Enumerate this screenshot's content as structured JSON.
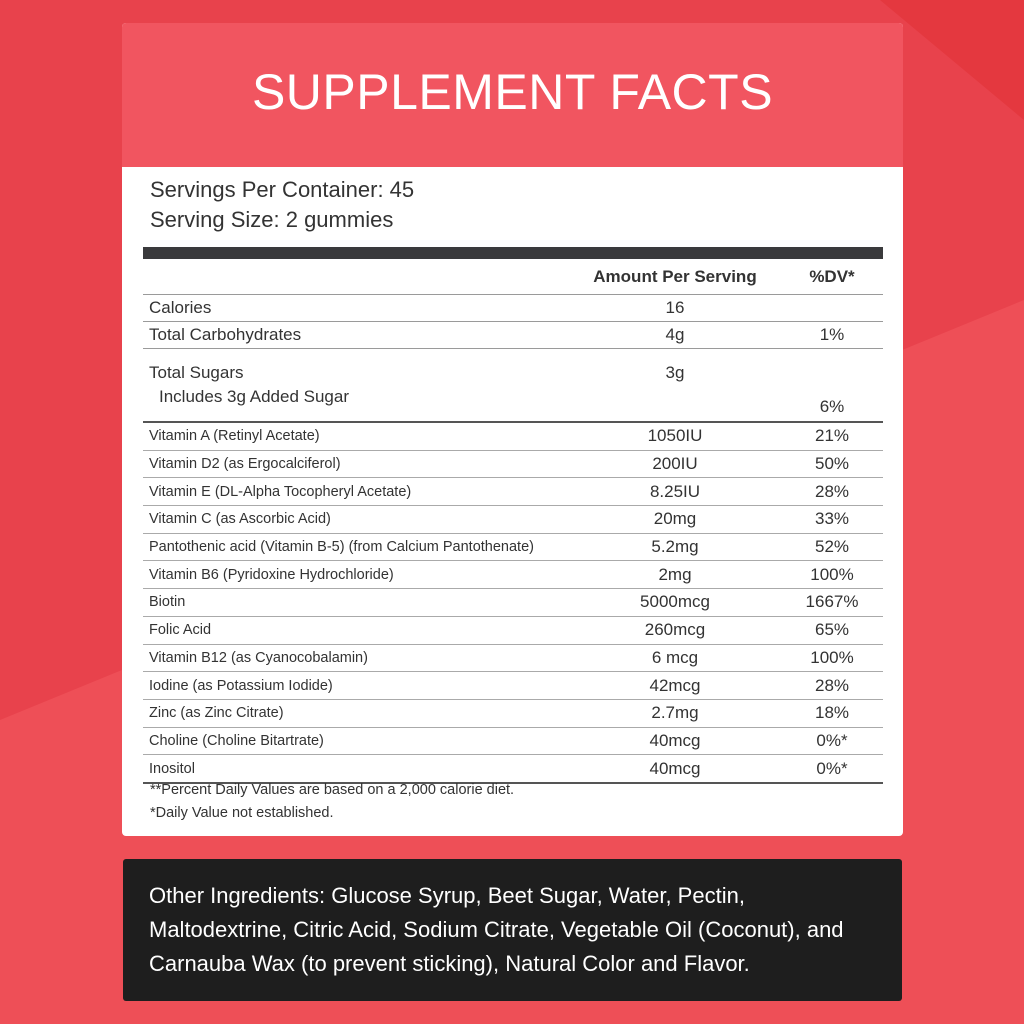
{
  "title": "SUPPLEMENT FACTS",
  "serving": {
    "servings_per_container": "Servings Per Container: 45",
    "serving_size": "Serving Size: 2 gummies"
  },
  "table": {
    "header_amount": "Amount Per Serving",
    "header_dv": "%DV*",
    "macros": [
      {
        "name": "Calories",
        "amount": "16",
        "dv": ""
      },
      {
        "name": "Total Carbohydrates",
        "amount": "4g",
        "dv": "1%"
      }
    ],
    "sugars": {
      "name": "Total Sugars",
      "sub": "Includes 3g Added Sugar",
      "amount": "3g",
      "dv": "6%"
    },
    "vitamins": [
      {
        "name": "Vitamin A (Retinyl Acetate)",
        "amount": "1050IU",
        "dv": "21%"
      },
      {
        "name": "Vitamin D2 (as Ergocalciferol)",
        "amount": "200IU",
        "dv": "50%"
      },
      {
        "name": "Vitamin E (DL-Alpha Tocopheryl Acetate)",
        "amount": "8.25IU",
        "dv": "28%"
      },
      {
        "name": "Vitamin C (as Ascorbic Acid)",
        "amount": "20mg",
        "dv": "33%"
      },
      {
        "name": "Pantothenic acid (Vitamin B-5) (from Calcium Pantothenate)",
        "amount": "5.2mg",
        "dv": "52%"
      },
      {
        "name": "Vitamin B6 (Pyridoxine Hydrochloride)",
        "amount": "2mg",
        "dv": "100%"
      },
      {
        "name": "Biotin",
        "amount": "5000mcg",
        "dv": "1667%"
      },
      {
        "name": "Folic Acid",
        "amount": "260mcg",
        "dv": "65%"
      },
      {
        "name": "Vitamin B12 (as Cyanocobalamin)",
        "amount": "6 mcg",
        "dv": "100%"
      },
      {
        "name": "Iodine (as Potassium Iodide)",
        "amount": "42mcg",
        "dv": "28%"
      },
      {
        "name": "Zinc (as Zinc Citrate)",
        "amount": "2.7mg",
        "dv": "18%"
      },
      {
        "name": "Choline (Choline Bitartrate)",
        "amount": "40mcg",
        "dv": "0%*"
      },
      {
        "name": "Inositol",
        "amount": "40mcg",
        "dv": "0%*"
      }
    ]
  },
  "footnotes": [
    "**Percent Daily Values are based on a 2,000 calorie diet.",
    "*Daily Value not established."
  ],
  "ingredients": "Other Ingredients: Glucose Syrup, Beet Sugar, Water, Pectin, Maltodextrine, Citric Acid, Sodium Citrate, Vegetable Oil (Coconut), and Carnauba Wax (to prevent sticking), Natural Color and Flavor.",
  "colors": {
    "background": "#e8424c",
    "header": "#f15560",
    "ingredients_box": "#1e1e1e"
  }
}
